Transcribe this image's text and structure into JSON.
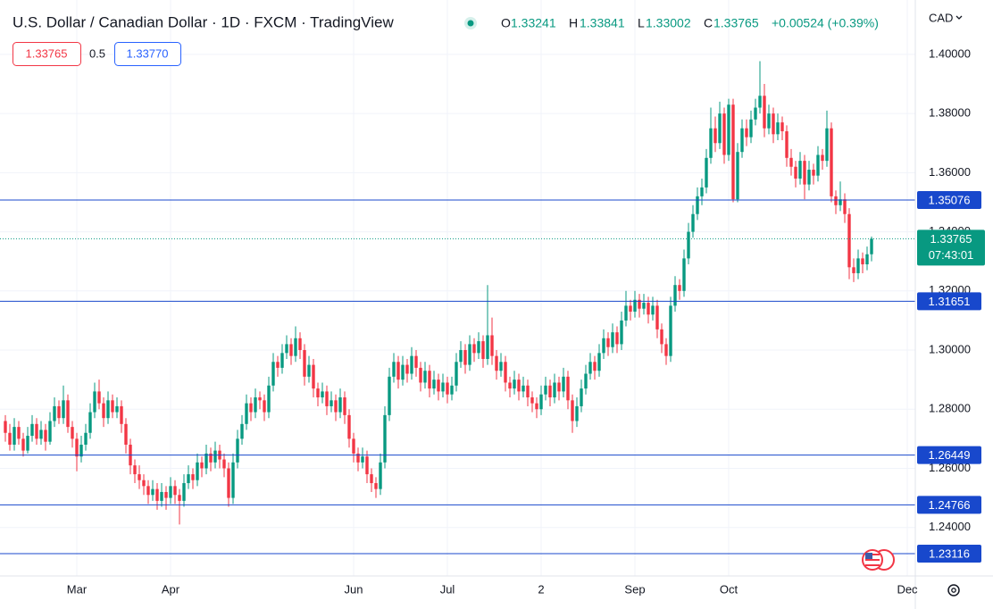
{
  "chart_data": {
    "type": "candlestick",
    "title": "U.S. Dollar / Canadian Dollar · 1D · FXCM · TradingView",
    "legend": [
      {
        "label": "O",
        "value": "1.33241"
      },
      {
        "label": "H",
        "value": "1.33841"
      },
      {
        "label": "L",
        "value": "1.33002"
      },
      {
        "label": "C",
        "value": "1.33765"
      }
    ],
    "change": "+0.00524 (+0.39%)",
    "bid": "1.33765",
    "spread": "0.5",
    "ask": "1.33770",
    "currency": "CAD",
    "up_color": "#089981",
    "down_color": "#f23645",
    "level_color": "#1848cc",
    "grid": true,
    "xlim": [
      -1.2,
      203.8
    ],
    "xticks": [
      {
        "value": 16,
        "label": "Mar"
      },
      {
        "value": 37,
        "label": "Apr"
      },
      {
        "value": 78,
        "label": "Jun"
      },
      {
        "value": 99,
        "label": "Jul"
      },
      {
        "value": 120,
        "label": "2"
      },
      {
        "value": 141,
        "label": "Sep"
      },
      {
        "value": 162,
        "label": "Oct"
      },
      {
        "value": 202,
        "label": "Dec"
      }
    ],
    "ylim": [
      1.2236,
      1.4184
    ],
    "yticks": [
      {
        "value": 1.4,
        "label": "1.40000"
      },
      {
        "value": 1.38,
        "label": "1.38000"
      },
      {
        "value": 1.36,
        "label": "1.36000"
      },
      {
        "value": 1.34,
        "label": "1.34000"
      },
      {
        "value": 1.32,
        "label": "1.32000"
      },
      {
        "value": 1.3,
        "label": "1.30000"
      },
      {
        "value": 1.28,
        "label": "1.28000"
      },
      {
        "value": 1.26,
        "label": "1.26000"
      },
      {
        "value": 1.24,
        "label": "1.24000"
      }
    ],
    "levels": [
      {
        "value": 1.35076,
        "label": "1.35076"
      },
      {
        "value": 1.31651,
        "label": "1.31651"
      },
      {
        "value": 1.26449,
        "label": "1.26449"
      },
      {
        "value": 1.24766,
        "label": "1.24766"
      },
      {
        "value": 1.23116,
        "label": "1.23116"
      }
    ],
    "last": {
      "value": 1.33765,
      "label": "1.33765",
      "countdown": "07:43:01"
    },
    "candles": [
      [
        1.276,
        1.278,
        1.269,
        1.272
      ],
      [
        1.272,
        1.275,
        1.266,
        1.268
      ],
      [
        1.268,
        1.277,
        1.266,
        1.274
      ],
      [
        1.274,
        1.276,
        1.268,
        1.27
      ],
      [
        1.27,
        1.272,
        1.264,
        1.266
      ],
      [
        1.266,
        1.274,
        1.265,
        1.271
      ],
      [
        1.271,
        1.278,
        1.269,
        1.275
      ],
      [
        1.275,
        1.277,
        1.268,
        1.27
      ],
      [
        1.27,
        1.276,
        1.268,
        1.273
      ],
      [
        1.273,
        1.275,
        1.266,
        1.269
      ],
      [
        1.269,
        1.279,
        1.268,
        1.276
      ],
      [
        1.276,
        1.284,
        1.274,
        1.281
      ],
      [
        1.281,
        1.283,
        1.275,
        1.277
      ],
      [
        1.277,
        1.288,
        1.275,
        1.283
      ],
      [
        1.283,
        1.285,
        1.272,
        1.274
      ],
      [
        1.274,
        1.276,
        1.267,
        1.27
      ],
      [
        1.27,
        1.272,
        1.259,
        1.264
      ],
      [
        1.264,
        1.271,
        1.262,
        1.268
      ],
      [
        1.268,
        1.275,
        1.266,
        1.272
      ],
      [
        1.272,
        1.282,
        1.27,
        1.279
      ],
      [
        1.279,
        1.289,
        1.277,
        1.286
      ],
      [
        1.286,
        1.29,
        1.28,
        1.282
      ],
      [
        1.282,
        1.284,
        1.274,
        1.277
      ],
      [
        1.277,
        1.286,
        1.275,
        1.283
      ],
      [
        1.283,
        1.285,
        1.277,
        1.279
      ],
      [
        1.279,
        1.284,
        1.277,
        1.281
      ],
      [
        1.281,
        1.283,
        1.272,
        1.275
      ],
      [
        1.275,
        1.277,
        1.265,
        1.268
      ],
      [
        1.268,
        1.27,
        1.258,
        1.261
      ],
      [
        1.261,
        1.263,
        1.255,
        1.258
      ],
      [
        1.258,
        1.261,
        1.253,
        1.256
      ],
      [
        1.256,
        1.258,
        1.251,
        1.254
      ],
      [
        1.254,
        1.256,
        1.248,
        1.251
      ],
      [
        1.251,
        1.256,
        1.249,
        1.253
      ],
      [
        1.253,
        1.255,
        1.246,
        1.249
      ],
      [
        1.249,
        1.255,
        1.247,
        1.252
      ],
      [
        1.252,
        1.254,
        1.246,
        1.25
      ],
      [
        1.25,
        1.257,
        1.248,
        1.254
      ],
      [
        1.254,
        1.256,
        1.248,
        1.251
      ],
      [
        1.251,
        1.253,
        1.241,
        1.249
      ],
      [
        1.249,
        1.258,
        1.247,
        1.255
      ],
      [
        1.255,
        1.261,
        1.253,
        1.258
      ],
      [
        1.258,
        1.26,
        1.253,
        1.256
      ],
      [
        1.256,
        1.265,
        1.254,
        1.262
      ],
      [
        1.262,
        1.264,
        1.257,
        1.26
      ],
      [
        1.26,
        1.268,
        1.258,
        1.265
      ],
      [
        1.265,
        1.267,
        1.259,
        1.262
      ],
      [
        1.262,
        1.269,
        1.26,
        1.266
      ],
      [
        1.266,
        1.268,
        1.26,
        1.263
      ],
      [
        1.263,
        1.265,
        1.257,
        1.26
      ],
      [
        1.26,
        1.262,
        1.247,
        1.25
      ],
      [
        1.25,
        1.265,
        1.248,
        1.262
      ],
      [
        1.262,
        1.273,
        1.26,
        1.27
      ],
      [
        1.27,
        1.278,
        1.268,
        1.275
      ],
      [
        1.275,
        1.285,
        1.273,
        1.282
      ],
      [
        1.282,
        1.284,
        1.276,
        1.279
      ],
      [
        1.279,
        1.287,
        1.277,
        1.284
      ],
      [
        1.284,
        1.286,
        1.28,
        1.283
      ],
      [
        1.283,
        1.285,
        1.276,
        1.279
      ],
      [
        1.279,
        1.291,
        1.277,
        1.288
      ],
      [
        1.288,
        1.299,
        1.286,
        1.296
      ],
      [
        1.296,
        1.298,
        1.291,
        1.294
      ],
      [
        1.294,
        1.302,
        1.292,
        1.299
      ],
      [
        1.299,
        1.305,
        1.297,
        1.302
      ],
      [
        1.302,
        1.304,
        1.295,
        1.298
      ],
      [
        1.298,
        1.308,
        1.296,
        1.304
      ],
      [
        1.304,
        1.306,
        1.297,
        1.3
      ],
      [
        1.3,
        1.302,
        1.288,
        1.291
      ],
      [
        1.291,
        1.298,
        1.289,
        1.295
      ],
      [
        1.295,
        1.297,
        1.284,
        1.287
      ],
      [
        1.287,
        1.289,
        1.281,
        1.284
      ],
      [
        1.284,
        1.289,
        1.282,
        1.286
      ],
      [
        1.286,
        1.288,
        1.278,
        1.281
      ],
      [
        1.281,
        1.286,
        1.279,
        1.283
      ],
      [
        1.283,
        1.285,
        1.276,
        1.279
      ],
      [
        1.279,
        1.287,
        1.277,
        1.284
      ],
      [
        1.284,
        1.286,
        1.275,
        1.278
      ],
      [
        1.278,
        1.28,
        1.267,
        1.27
      ],
      [
        1.27,
        1.272,
        1.262,
        1.265
      ],
      [
        1.265,
        1.267,
        1.259,
        1.262
      ],
      [
        1.262,
        1.267,
        1.26,
        1.264
      ],
      [
        1.264,
        1.266,
        1.255,
        1.258
      ],
      [
        1.258,
        1.26,
        1.252,
        1.255
      ],
      [
        1.255,
        1.257,
        1.25,
        1.253
      ],
      [
        1.253,
        1.265,
        1.251,
        1.262
      ],
      [
        1.262,
        1.281,
        1.26,
        1.278
      ],
      [
        1.278,
        1.294,
        1.276,
        1.291
      ],
      [
        1.291,
        1.299,
        1.289,
        1.296
      ],
      [
        1.296,
        1.298,
        1.287,
        1.29
      ],
      [
        1.29,
        1.298,
        1.288,
        1.295
      ],
      [
        1.295,
        1.297,
        1.289,
        1.292
      ],
      [
        1.292,
        1.301,
        1.29,
        1.298
      ],
      [
        1.298,
        1.3,
        1.291,
        1.294
      ],
      [
        1.294,
        1.296,
        1.286,
        1.289
      ],
      [
        1.289,
        1.296,
        1.287,
        1.293
      ],
      [
        1.293,
        1.295,
        1.284,
        1.287
      ],
      [
        1.287,
        1.293,
        1.285,
        1.29
      ],
      [
        1.29,
        1.292,
        1.283,
        1.286
      ],
      [
        1.286,
        1.292,
        1.284,
        1.289
      ],
      [
        1.289,
        1.291,
        1.282,
        1.285
      ],
      [
        1.285,
        1.291,
        1.283,
        1.288
      ],
      [
        1.288,
        1.299,
        1.286,
        1.296
      ],
      [
        1.296,
        1.303,
        1.294,
        1.3
      ],
      [
        1.3,
        1.302,
        1.292,
        1.295
      ],
      [
        1.295,
        1.305,
        1.293,
        1.302
      ],
      [
        1.302,
        1.304,
        1.296,
        1.299
      ],
      [
        1.299,
        1.306,
        1.297,
        1.303
      ],
      [
        1.303,
        1.305,
        1.294,
        1.297
      ],
      [
        1.297,
        1.322,
        1.295,
        1.305
      ],
      [
        1.305,
        1.311,
        1.295,
        1.298
      ],
      [
        1.298,
        1.3,
        1.29,
        1.293
      ],
      [
        1.293,
        1.299,
        1.291,
        1.296
      ],
      [
        1.296,
        1.298,
        1.286,
        1.289
      ],
      [
        1.289,
        1.291,
        1.284,
        1.287
      ],
      [
        1.287,
        1.293,
        1.285,
        1.29
      ],
      [
        1.29,
        1.292,
        1.283,
        1.286
      ],
      [
        1.286,
        1.291,
        1.284,
        1.288
      ],
      [
        1.288,
        1.29,
        1.281,
        1.284
      ],
      [
        1.284,
        1.286,
        1.279,
        1.282
      ],
      [
        1.282,
        1.284,
        1.277,
        1.28
      ],
      [
        1.28,
        1.288,
        1.278,
        1.285
      ],
      [
        1.285,
        1.291,
        1.283,
        1.288
      ],
      [
        1.288,
        1.29,
        1.281,
        1.284
      ],
      [
        1.284,
        1.292,
        1.282,
        1.289
      ],
      [
        1.289,
        1.291,
        1.283,
        1.286
      ],
      [
        1.286,
        1.294,
        1.284,
        1.291
      ],
      [
        1.291,
        1.293,
        1.28,
        1.283
      ],
      [
        1.283,
        1.285,
        1.272,
        1.276
      ],
      [
        1.276,
        1.284,
        1.274,
        1.281
      ],
      [
        1.281,
        1.29,
        1.279,
        1.287
      ],
      [
        1.287,
        1.295,
        1.285,
        1.292
      ],
      [
        1.292,
        1.299,
        1.29,
        1.296
      ],
      [
        1.296,
        1.298,
        1.29,
        1.293
      ],
      [
        1.293,
        1.302,
        1.291,
        1.299
      ],
      [
        1.299,
        1.307,
        1.297,
        1.304
      ],
      [
        1.304,
        1.306,
        1.298,
        1.301
      ],
      [
        1.301,
        1.309,
        1.299,
        1.306
      ],
      [
        1.306,
        1.308,
        1.299,
        1.302
      ],
      [
        1.302,
        1.313,
        1.3,
        1.31
      ],
      [
        1.31,
        1.32,
        1.308,
        1.315
      ],
      [
        1.315,
        1.317,
        1.31,
        1.313
      ],
      [
        1.313,
        1.32,
        1.311,
        1.317
      ],
      [
        1.317,
        1.319,
        1.311,
        1.314
      ],
      [
        1.314,
        1.319,
        1.312,
        1.316
      ],
      [
        1.316,
        1.318,
        1.309,
        1.312
      ],
      [
        1.312,
        1.318,
        1.31,
        1.315
      ],
      [
        1.315,
        1.317,
        1.304,
        1.307
      ],
      [
        1.307,
        1.309,
        1.299,
        1.302
      ],
      [
        1.302,
        1.304,
        1.295,
        1.298
      ],
      [
        1.298,
        1.318,
        1.296,
        1.315
      ],
      [
        1.315,
        1.325,
        1.313,
        1.322
      ],
      [
        1.322,
        1.324,
        1.317,
        1.32
      ],
      [
        1.32,
        1.334,
        1.318,
        1.331
      ],
      [
        1.331,
        1.343,
        1.329,
        1.34
      ],
      [
        1.34,
        1.349,
        1.338,
        1.346
      ],
      [
        1.346,
        1.355,
        1.344,
        1.352
      ],
      [
        1.352,
        1.358,
        1.349,
        1.355
      ],
      [
        1.355,
        1.368,
        1.353,
        1.365
      ],
      [
        1.365,
        1.382,
        1.363,
        1.375
      ],
      [
        1.375,
        1.379,
        1.367,
        1.37
      ],
      [
        1.37,
        1.384,
        1.368,
        1.38
      ],
      [
        1.38,
        1.382,
        1.363,
        1.366
      ],
      [
        1.366,
        1.385,
        1.364,
        1.383
      ],
      [
        1.383,
        1.385,
        1.35,
        1.351
      ],
      [
        1.351,
        1.37,
        1.35,
        1.367
      ],
      [
        1.367,
        1.378,
        1.365,
        1.375
      ],
      [
        1.375,
        1.378,
        1.369,
        1.372
      ],
      [
        1.372,
        1.381,
        1.37,
        1.378
      ],
      [
        1.378,
        1.385,
        1.376,
        1.382
      ],
      [
        1.382,
        1.3977,
        1.38,
        1.386
      ],
      [
        1.386,
        1.39,
        1.372,
        1.375
      ],
      [
        1.375,
        1.383,
        1.373,
        1.38
      ],
      [
        1.38,
        1.382,
        1.37,
        1.373
      ],
      [
        1.373,
        1.38,
        1.371,
        1.377
      ],
      [
        1.377,
        1.379,
        1.371,
        1.374
      ],
      [
        1.374,
        1.376,
        1.362,
        1.365
      ],
      [
        1.365,
        1.368,
        1.359,
        1.362
      ],
      [
        1.362,
        1.364,
        1.355,
        1.358
      ],
      [
        1.358,
        1.367,
        1.356,
        1.364
      ],
      [
        1.364,
        1.366,
        1.351,
        1.356
      ],
      [
        1.356,
        1.364,
        1.354,
        1.361
      ],
      [
        1.361,
        1.363,
        1.356,
        1.359
      ],
      [
        1.359,
        1.369,
        1.357,
        1.366
      ],
      [
        1.366,
        1.368,
        1.361,
        1.364
      ],
      [
        1.364,
        1.381,
        1.362,
        1.375
      ],
      [
        1.375,
        1.377,
        1.35,
        1.352
      ],
      [
        1.352,
        1.354,
        1.346,
        1.349
      ],
      [
        1.349,
        1.357,
        1.347,
        1.351
      ],
      [
        1.351,
        1.353,
        1.343,
        1.346
      ],
      [
        1.346,
        1.348,
        1.324,
        1.328
      ],
      [
        1.328,
        1.331,
        1.323,
        1.326
      ],
      [
        1.326,
        1.334,
        1.324,
        1.331
      ],
      [
        1.331,
        1.333,
        1.326,
        1.329
      ],
      [
        1.329,
        1.335,
        1.327,
        1.3324
      ],
      [
        1.33241,
        1.33841,
        1.33002,
        1.33765
      ]
    ]
  }
}
